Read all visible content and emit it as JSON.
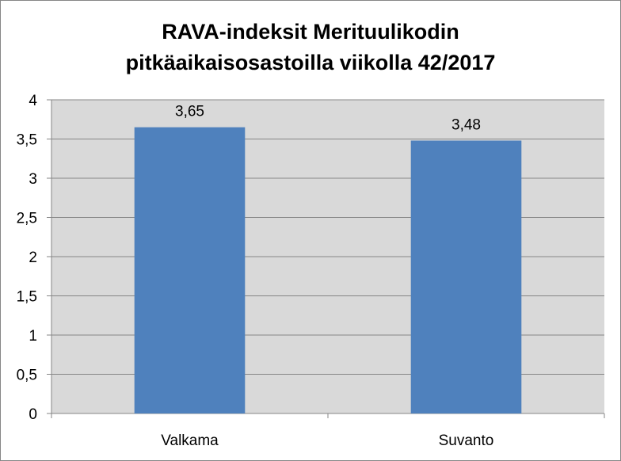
{
  "chart_data": {
    "type": "bar",
    "title": [
      "RAVA-indeksit Merituulikodin",
      "pitkäaikaisosastoilla viikolla 42/2017"
    ],
    "categories": [
      "Valkama",
      "Suvanto"
    ],
    "values": [
      3.65,
      3.48
    ],
    "data_labels": [
      "3,65",
      "3,48"
    ],
    "ylim": [
      0,
      4
    ],
    "yticks": [
      0,
      0.5,
      1,
      1.5,
      2,
      2.5,
      3,
      3.5,
      4
    ],
    "ytick_labels": [
      "0",
      "0,5",
      "1",
      "1,5",
      "2",
      "2,5",
      "3",
      "3,5",
      "4"
    ],
    "xlabel": "",
    "ylabel": "",
    "grid": true,
    "legend": "none",
    "colors": {
      "bar": "#4f81bd",
      "plot_background": "#d9d9d9",
      "gridline": "#868686"
    }
  }
}
